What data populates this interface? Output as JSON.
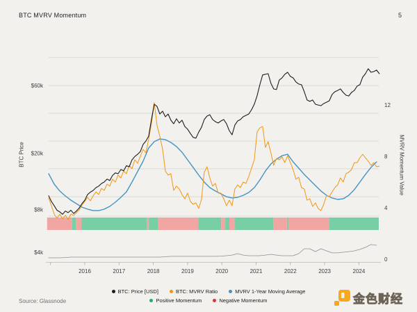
{
  "header": {
    "title": "BTC MVRV Momentum",
    "page_number": "5"
  },
  "footer": {
    "source": "Source: Glassnode",
    "brand": "金色财经"
  },
  "legend": {
    "rows": [
      [
        {
          "label": "BTC: Price [USD]",
          "color": "#1c1c1c"
        },
        {
          "label": "BTC: MVRV Ratio",
          "color": "#f0960f"
        },
        {
          "label": "MVRV 1-Year Moving Average",
          "color": "#4393c3"
        }
      ],
      [
        {
          "label": "Positive Momentum",
          "color": "#21ab74"
        },
        {
          "label": "Negative Momentum",
          "color": "#d2373b"
        }
      ]
    ]
  },
  "chart_data": {
    "type": "line",
    "title": "BTC MVRV Momentum",
    "x_axis": {
      "range": [
        2014.9,
        2024.6
      ],
      "tick_labels": [
        2016,
        2017,
        2018,
        2019,
        2020,
        2021,
        2022,
        2023,
        2024
      ],
      "minor_tick_years": [
        2015,
        2016,
        2017,
        2018,
        2019,
        2020,
        2021,
        2022,
        2023,
        2024
      ]
    },
    "y_left": {
      "label": "BTC Price",
      "scale": "log",
      "unit": "USD thousands",
      "range": [
        3.4,
        94.0
      ],
      "ticks": [
        {
          "label": "$60k",
          "value": 60
        },
        {
          "label": "$20k",
          "value": 20
        },
        {
          "label": "$8k",
          "value": 8
        },
        {
          "label": "$4k",
          "value": 4
        }
      ]
    },
    "y_right": {
      "label": "MVRV Momentum Value",
      "scale": "linear",
      "range": [
        -0.2,
        15.7
      ],
      "ticks": [
        {
          "label": "12",
          "value": 12
        },
        {
          "label": "8",
          "value": 8
        },
        {
          "label": "4",
          "value": 4
        },
        {
          "label": "0",
          "value": 0
        }
      ]
    },
    "gridlines_right_axis_values": [
      15.68,
      13.51,
      11.35,
      9.19,
      7.03,
      4.86,
      3.35
    ],
    "colors": {
      "background": "#f2f1ee",
      "grid": "#dcdad6",
      "axis_line": "#c9c7c2",
      "tick": "#b9b7b2",
      "price": "#1c1c1c",
      "mvrv": "#f0960f",
      "ma": "#4393c3",
      "indicator": "#8e8e8e",
      "positive_band": "#79cfa5",
      "negative_band": "#f1a6a4"
    },
    "series": [
      {
        "id": "price",
        "name": "BTC: Price [USD]",
        "axis": "left",
        "color": "#1c1c1c",
        "width": 1.1,
        "x_start": 2014.945,
        "x_step": 0.0811,
        "values": [
          10.0,
          9.1,
          8.5,
          7.9,
          7.7,
          7.4,
          7.8,
          7.6,
          7.9,
          7.5,
          7.8,
          8.2,
          8.8,
          9.3,
          10.2,
          10.6,
          10.9,
          11.4,
          11.7,
          12.2,
          12.5,
          13.1,
          12.8,
          13.9,
          14.5,
          14.3,
          15.3,
          15.0,
          16.3,
          16.0,
          17.9,
          18.9,
          19.6,
          20.5,
          23.0,
          24.3,
          26.3,
          34.5,
          44.2,
          42.7,
          37.7,
          39.5,
          36.1,
          37.7,
          34.1,
          32.2,
          34.9,
          32.6,
          34.1,
          30.8,
          29.5,
          27.5,
          25.8,
          25.5,
          28.1,
          30.4,
          34.5,
          36.5,
          37.3,
          34.5,
          33.3,
          32.6,
          33.7,
          34.5,
          32.2,
          28.8,
          26.9,
          31.5,
          33.7,
          34.5,
          36.1,
          36.9,
          37.7,
          40.4,
          44.2,
          50.7,
          60.7,
          71.2,
          71.9,
          72.7,
          62.1,
          56.7,
          56.1,
          65.5,
          67.8,
          71.9,
          74.3,
          69.5,
          67.8,
          63.5,
          61.4,
          60.7,
          54.2,
          47.4,
          46.3,
          47.4,
          44.2,
          43.7,
          43.2,
          44.7,
          45.7,
          46.8,
          51.8,
          54.2,
          55.3,
          56.7,
          53.6,
          51.2,
          50.6,
          53.6,
          55.3,
          59.3,
          60.7,
          68.6,
          72.7,
          78.7,
          74.3,
          75.2,
          77.0,
          72.7
        ]
      },
      {
        "id": "mvrv",
        "name": "BTC: MVRV Ratio",
        "axis": "right",
        "color": "#f0960f",
        "width": 1,
        "x_start": 2014.945,
        "x_step": 0.0811,
        "values": [
          4.76,
          4.16,
          3.51,
          3.19,
          3.51,
          3.14,
          3.41,
          3.08,
          3.51,
          3.41,
          3.62,
          3.84,
          4.22,
          4.49,
          4.81,
          4.54,
          4.92,
          5.24,
          5.03,
          5.51,
          5.35,
          5.84,
          5.68,
          6.22,
          6.0,
          6.54,
          6.32,
          6.86,
          6.65,
          7.3,
          7.03,
          7.73,
          7.46,
          8.0,
          8.54,
          8.27,
          9.35,
          10.54,
          12.16,
          10.43,
          9.57,
          8.59,
          6.86,
          6.54,
          6.65,
          5.35,
          5.68,
          5.46,
          5.03,
          4.7,
          5.14,
          4.49,
          4.27,
          4.38,
          3.95,
          4.65,
          6.76,
          7.19,
          6.32,
          5.68,
          5.89,
          5.14,
          5.14,
          4.7,
          4.16,
          4.59,
          4.16,
          5.46,
          5.78,
          5.57,
          6.0,
          5.89,
          6.43,
          7.08,
          7.73,
          9.89,
          10.22,
          10.32,
          8.7,
          9.14,
          8.27,
          7.3,
          7.84,
          7.73,
          7.95,
          7.51,
          8.05,
          7.51,
          6.97,
          6.22,
          6.38,
          5.57,
          5.46,
          4.59,
          4.7,
          4.11,
          4.38,
          3.95,
          3.78,
          4.27,
          4.97,
          4.86,
          5.24,
          5.57,
          5.78,
          6.32,
          6.0,
          6.65,
          6.76,
          6.97,
          7.51,
          7.51,
          7.89,
          8.16,
          7.89,
          7.62,
          7.3,
          7.51,
          7.19,
          7.24
        ]
      },
      {
        "id": "ma",
        "name": "MVRV 1-Year Moving Average",
        "axis": "right",
        "color": "#4393c3",
        "width": 1.4,
        "x_start": 2014.945,
        "x_step": 0.1622,
        "values": [
          6.65,
          5.84,
          5.3,
          4.92,
          4.59,
          4.32,
          4.05,
          3.89,
          3.78,
          3.78,
          3.89,
          4.11,
          4.43,
          4.81,
          5.24,
          6.0,
          6.81,
          7.62,
          8.65,
          9.14,
          9.35,
          9.3,
          9.08,
          8.76,
          8.32,
          7.73,
          7.14,
          6.54,
          6.0,
          5.57,
          5.3,
          5.08,
          4.86,
          4.76,
          4.81,
          4.97,
          5.19,
          5.57,
          6.16,
          6.86,
          7.41,
          7.78,
          8.05,
          8.16,
          7.57,
          7.08,
          6.59,
          6.16,
          5.73,
          5.3,
          4.97,
          4.76,
          4.65,
          4.7,
          4.97,
          5.41,
          6.0,
          6.59,
          7.14,
          7.57
        ]
      },
      {
        "id": "indicator",
        "name": "momentum-indicator",
        "axis": "right",
        "color": "#8e8e8e",
        "width": 0.8,
        "x_start": 2014.945,
        "x_step": 0.1622,
        "values": [
          0.11,
          0.11,
          0.11,
          0.13,
          0.16,
          0.16,
          0.16,
          0.16,
          0.16,
          0.16,
          0.16,
          0.16,
          0.16,
          0.16,
          0.16,
          0.16,
          0.16,
          0.16,
          0.16,
          0.16,
          0.16,
          0.19,
          0.22,
          0.22,
          0.22,
          0.22,
          0.22,
          0.22,
          0.22,
          0.22,
          0.22,
          0.24,
          0.27,
          0.32,
          0.43,
          0.32,
          0.27,
          0.27,
          0.27,
          0.32,
          0.38,
          0.32,
          0.27,
          0.27,
          0.27,
          0.43,
          0.81,
          0.81,
          0.59,
          0.81,
          0.65,
          0.49,
          0.49,
          0.54,
          0.59,
          0.65,
          0.76,
          0.92,
          1.14,
          1.08
        ]
      }
    ],
    "momentum_segments": [
      {
        "from": 2014.9,
        "to": 2015.63,
        "type": "negative"
      },
      {
        "from": 2015.63,
        "to": 2015.74,
        "type": "positive"
      },
      {
        "from": 2015.74,
        "to": 2015.9,
        "type": "negative"
      },
      {
        "from": 2015.9,
        "to": 2017.81,
        "type": "positive"
      },
      {
        "from": 2017.81,
        "to": 2017.87,
        "type": "negative"
      },
      {
        "from": 2017.87,
        "to": 2018.13,
        "type": "positive"
      },
      {
        "from": 2018.13,
        "to": 2019.31,
        "type": "negative"
      },
      {
        "from": 2019.31,
        "to": 2019.98,
        "type": "positive"
      },
      {
        "from": 2019.98,
        "to": 2020.1,
        "type": "negative"
      },
      {
        "from": 2020.1,
        "to": 2020.22,
        "type": "positive"
      },
      {
        "from": 2020.22,
        "to": 2020.38,
        "type": "negative"
      },
      {
        "from": 2020.38,
        "to": 2021.5,
        "type": "positive"
      },
      {
        "from": 2021.5,
        "to": 2021.9,
        "type": "negative"
      },
      {
        "from": 2021.9,
        "to": 2021.94,
        "type": "positive"
      },
      {
        "from": 2021.94,
        "to": 2023.14,
        "type": "negative"
      },
      {
        "from": 2023.14,
        "to": 2024.58,
        "type": "positive"
      }
    ]
  }
}
